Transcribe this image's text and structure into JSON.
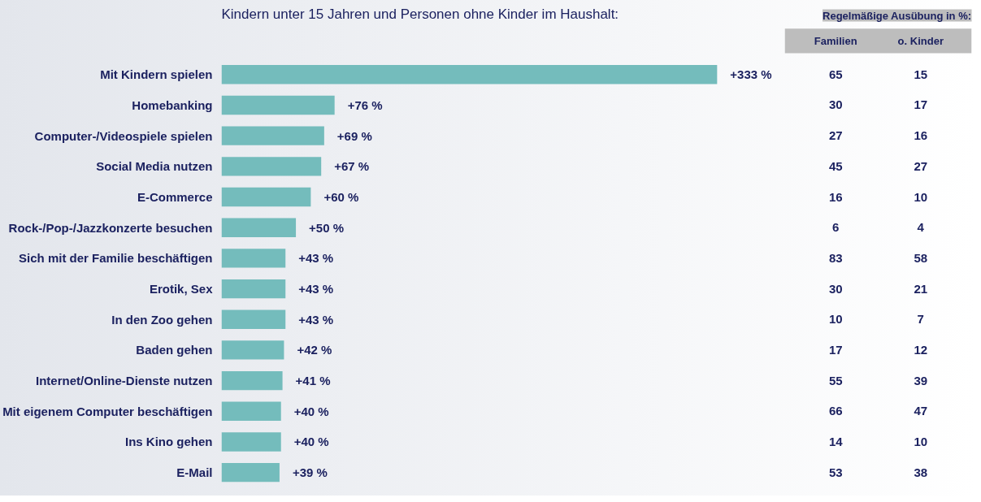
{
  "chart_data": [
    {
      "type": "bar",
      "orientation": "horizontal",
      "title": "Kindern unter 15 Jahren und Personen ohne Kinder im Haushalt:",
      "color": "#74bcbc",
      "categories": [
        "Mit Kindern spielen",
        "Homebanking",
        "Computer-/Videospiele spielen",
        "Social Media nutzen",
        "E-Commerce",
        "Rock-/Pop-/Jazzkonzerte besuchen",
        "Sich mit der Familie beschäftigen",
        "Erotik, Sex",
        "In den Zoo gehen",
        "Baden gehen",
        "Internet/Online-Dienste nutzen",
        "Mit eigenem Computer beschäftigen",
        "Ins Kino gehen",
        "E-Mail"
      ],
      "values": [
        333,
        76,
        69,
        67,
        60,
        50,
        43,
        43,
        43,
        42,
        41,
        40,
        40,
        39
      ],
      "value_labels": [
        "+333 %",
        "+76 %",
        "+69 %",
        "+67 %",
        "+60 %",
        "+50 %",
        "+43 %",
        "+43 %",
        "+43 %",
        "+42 %",
        "+41 %",
        "+40 %",
        "+40 %",
        "+39 %"
      ]
    },
    {
      "type": "heatmap",
      "data_labels": true,
      "title": "Regelmäßige Ausübung in %:",
      "categories": [
        "Familien",
        "o. Kinder"
      ],
      "y_categories": [
        null,
        null,
        null,
        null,
        null,
        null,
        null,
        null,
        null,
        null,
        null,
        null,
        null,
        null
      ],
      "cells": [
        [
          65,
          15
        ],
        [
          30,
          17
        ],
        [
          27,
          16
        ],
        [
          45,
          27
        ],
        [
          16,
          10
        ],
        [
          6,
          4
        ],
        [
          83,
          58
        ],
        [
          30,
          21
        ],
        [
          10,
          7
        ],
        [
          17,
          12
        ],
        [
          55,
          39
        ],
        [
          66,
          47
        ],
        [
          14,
          10
        ],
        [
          53,
          38
        ]
      ]
    }
  ]
}
